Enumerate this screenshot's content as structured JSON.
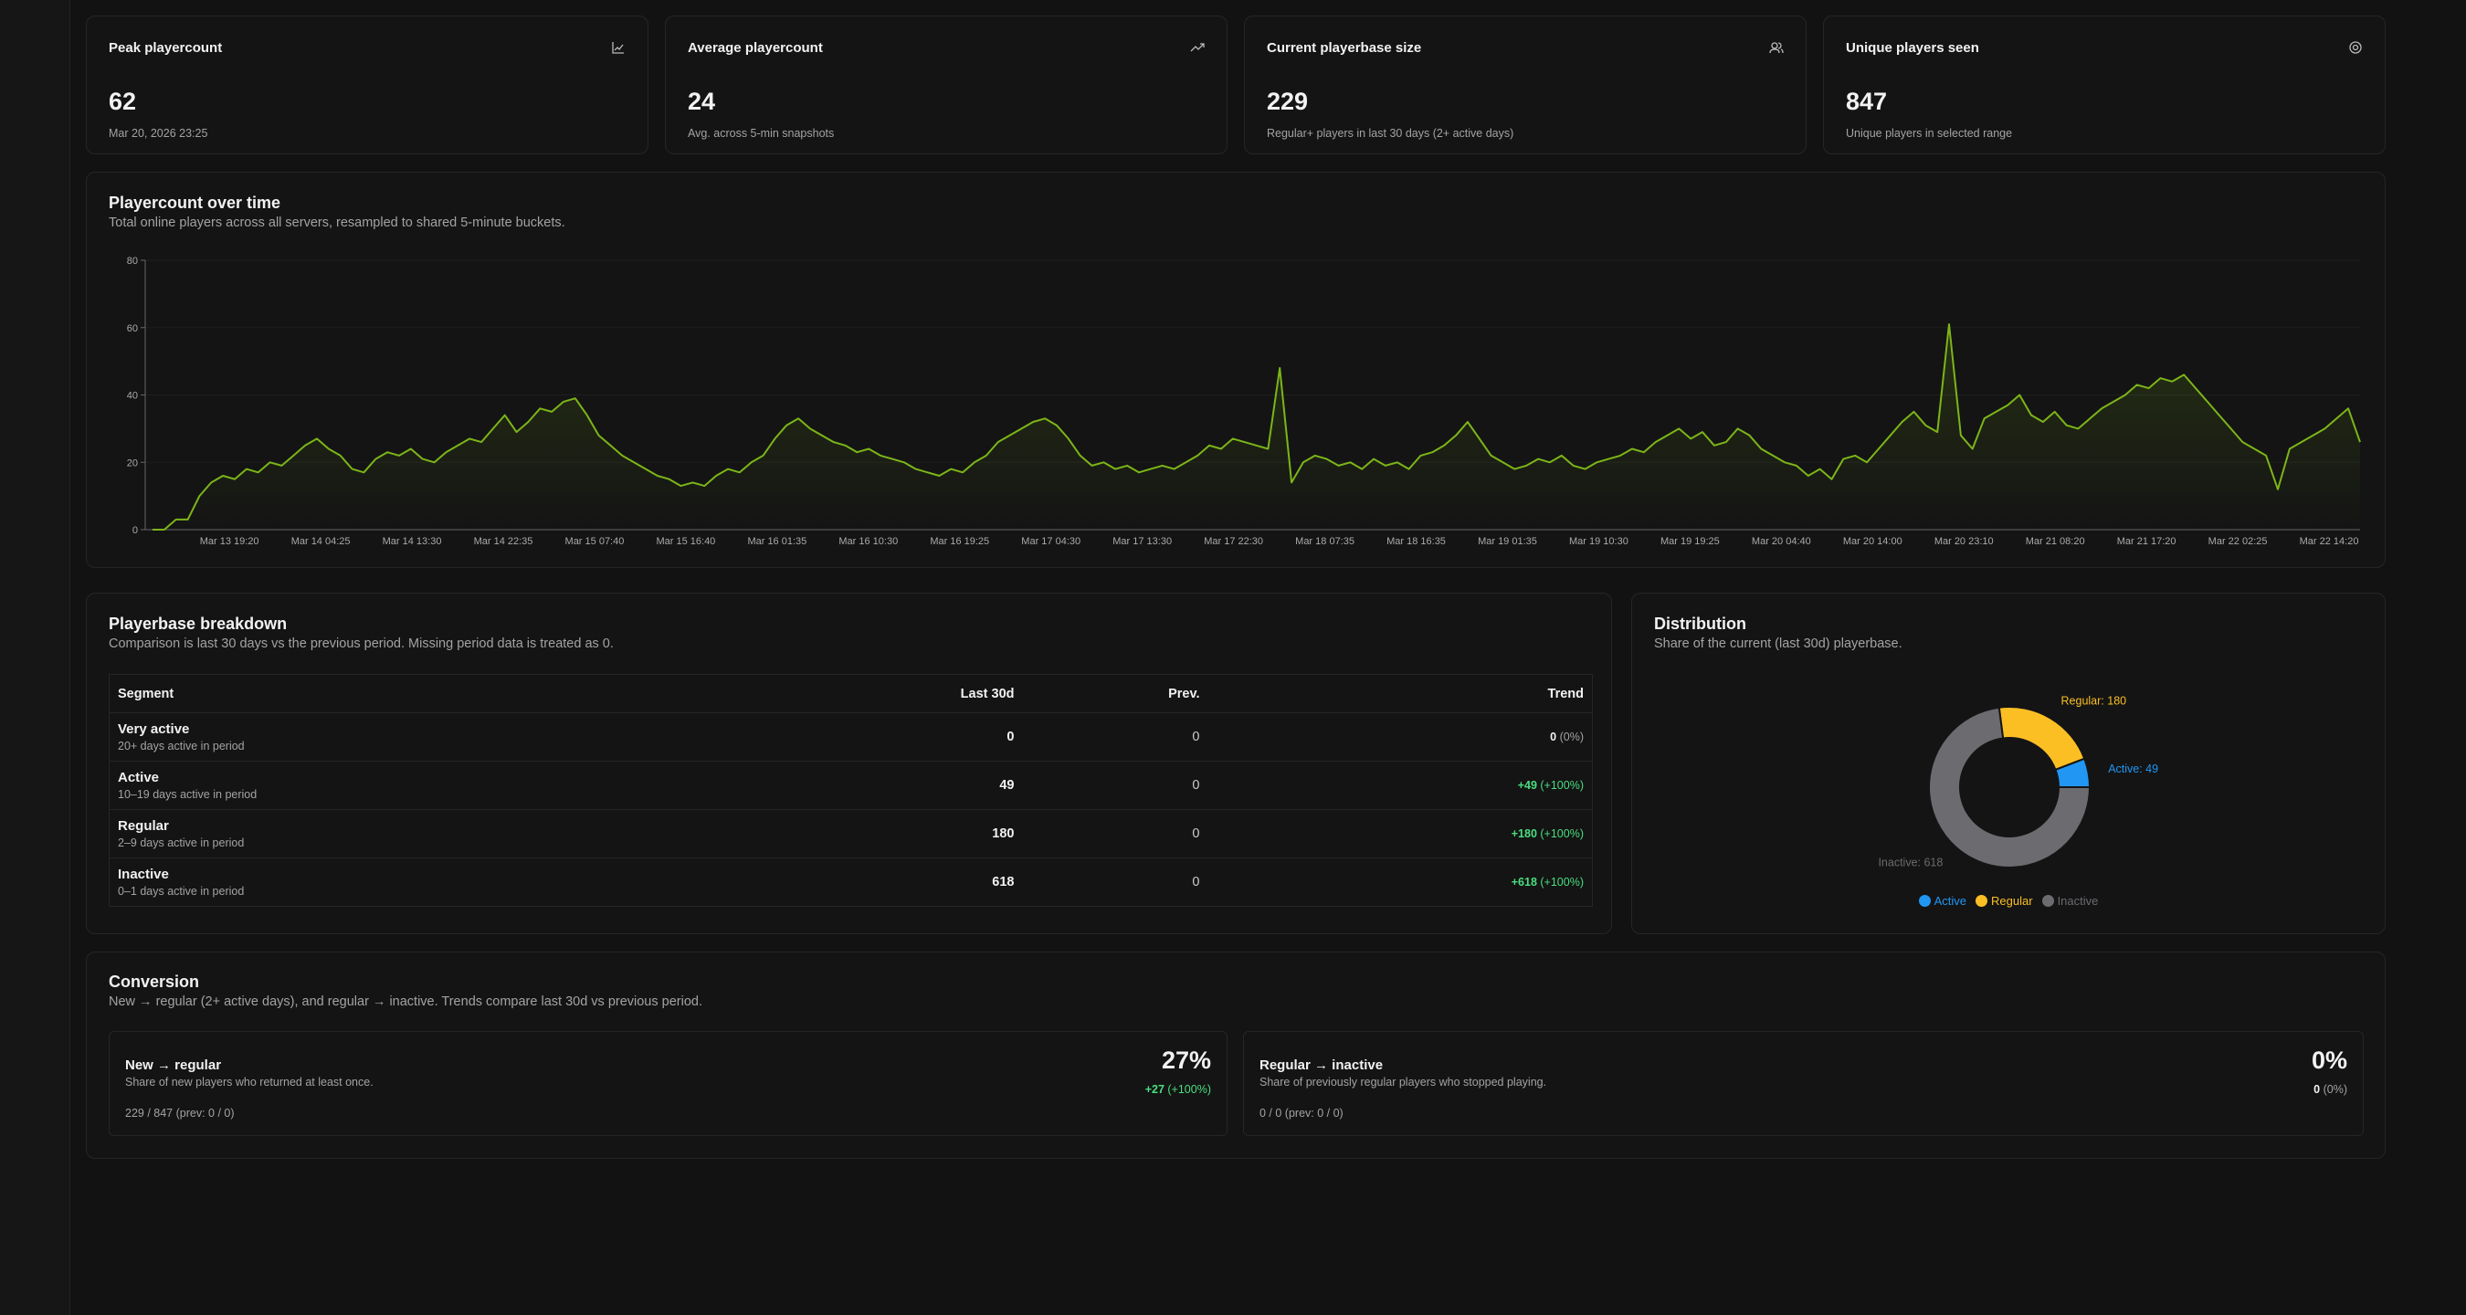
{
  "stats": [
    {
      "title": "Peak playercount",
      "value": 62,
      "detail": "Mar 20, 2026 23:25"
    },
    {
      "title": "Average playercount",
      "value": 24,
      "detail": "Avg. across 5-min snapshots"
    },
    {
      "title": "Current playerbase size",
      "value": 229,
      "detail": "Regular+ players in last 30 days (2+ active days)"
    },
    {
      "title": "Unique players seen",
      "value": 847,
      "detail": "Unique players in selected range"
    }
  ],
  "playercount": {
    "title": "Playercount over time",
    "subtitle": "Total online players across all servers, resampled to shared 5-minute buckets.",
    "chart": {
      "type": "line",
      "xticks": [
        "Mar 13 19:20",
        "Mar 14 04:25",
        "Mar 14 13:30",
        "Mar 14 22:35",
        "Mar 15 07:40",
        "Mar 15 16:40",
        "Mar 16 01:35",
        "Mar 16 10:30",
        "Mar 16 19:25",
        "Mar 17 04:30",
        "Mar 17 13:30",
        "Mar 17 22:30",
        "Mar 18 07:35",
        "Mar 18 16:35",
        "Mar 19 01:35",
        "Mar 19 10:30",
        "Mar 19 19:25",
        "Mar 20 04:40",
        "Mar 20 14:00",
        "Mar 20 23:10",
        "Mar 21 08:20",
        "Mar 21 17:20",
        "Mar 22 02:25",
        "Mar 22 14:20"
      ],
      "ylim": [
        0,
        80
      ],
      "yticks": [
        0,
        20,
        40,
        60,
        80
      ],
      "grid": true,
      "series": [
        {
          "color": "#7cb518",
          "values": [
            0,
            0,
            3,
            3,
            10,
            14,
            16,
            15,
            18,
            17,
            20,
            19,
            22,
            25,
            27,
            24,
            22,
            18,
            17,
            21,
            23,
            22,
            24,
            21,
            20,
            23,
            25,
            27,
            26,
            30,
            34,
            29,
            32,
            36,
            35,
            38,
            39,
            34,
            28,
            25,
            22,
            20,
            18,
            16,
            15,
            13,
            14,
            13,
            16,
            18,
            17,
            20,
            22,
            27,
            31,
            33,
            30,
            28,
            26,
            25,
            23,
            24,
            22,
            21,
            20,
            18,
            17,
            16,
            18,
            17,
            20,
            22,
            26,
            28,
            30,
            32,
            33,
            31,
            27,
            22,
            19,
            20,
            18,
            19,
            17,
            18,
            19,
            18,
            20,
            22,
            25,
            24,
            27,
            26,
            25,
            24,
            48,
            14,
            20,
            22,
            21,
            19,
            20,
            18,
            21,
            19,
            20,
            18,
            22,
            23,
            25,
            28,
            32,
            27,
            22,
            20,
            18,
            19,
            21,
            20,
            22,
            19,
            18,
            20,
            21,
            22,
            24,
            23,
            26,
            28,
            30,
            27,
            29,
            25,
            26,
            30,
            28,
            24,
            22,
            20,
            19,
            16,
            18,
            15,
            21,
            22,
            20,
            24,
            28,
            32,
            35,
            31,
            29,
            61,
            28,
            24,
            33,
            35,
            37,
            40,
            34,
            32,
            35,
            31,
            30,
            33,
            36,
            38,
            40,
            43,
            42,
            45,
            44,
            46,
            42,
            38,
            34,
            30,
            26,
            24,
            22,
            12,
            24,
            26,
            28,
            30,
            33,
            36,
            26
          ]
        }
      ]
    }
  },
  "breakdown": {
    "title": "Playerbase breakdown",
    "subtitle": "Comparison is last 30 days vs the previous period. Missing period data is treated as 0.",
    "columns": [
      "Segment",
      "Last 30d",
      "Prev.",
      "Trend"
    ],
    "rows": [
      {
        "segment": "Very active",
        "description": "20+ days active in period",
        "last_30d": 0,
        "prev": 0,
        "trend": "0",
        "trend_pct": "(0%)"
      },
      {
        "segment": "Active",
        "description": "10–19 days active in period",
        "last_30d": 49,
        "prev": 0,
        "trend": "+49",
        "trend_pct": "(+100%)"
      },
      {
        "segment": "Regular",
        "description": "2–9 days active in period",
        "last_30d": 180,
        "prev": 0,
        "trend": "+180",
        "trend_pct": "(+100%)"
      },
      {
        "segment": "Inactive",
        "description": "0–1 days active in period",
        "last_30d": 618,
        "prev": 0,
        "trend": "+618",
        "trend_pct": "(+100%)"
      }
    ]
  },
  "distribution": {
    "title": "Distribution",
    "subtitle": "Share of the current (last 30d) playerbase.",
    "chart": {
      "type": "donut",
      "series": [
        {
          "name": "Active",
          "value": 49,
          "label": "Active: 49",
          "color": "#2196f3"
        },
        {
          "name": "Regular",
          "value": 180,
          "label": "Regular: 180",
          "color": "#fbbf24"
        },
        {
          "name": "Inactive",
          "value": 618,
          "label": "Inactive: 618",
          "color": "#6b6b70"
        }
      ]
    }
  },
  "conversion": {
    "title": "Conversion",
    "subtitle": "New → regular (2+ active days), and regular → inactive. Trends compare last 30d vs previous period.",
    "cards": [
      {
        "title": "New → regular",
        "description": "Share of new players who returned at least once.",
        "value": "27%",
        "trend": "+27",
        "trend_pct": "(+100%)",
        "detail": "229 / 847 (prev: 0 / 0)"
      },
      {
        "title": "Regular → inactive",
        "description": "Share of previously regular players who stopped playing.",
        "value": "0%",
        "trend": "0",
        "trend_pct": "(0%)",
        "detail": "0 / 0 (prev: 0 / 0)"
      }
    ]
  }
}
